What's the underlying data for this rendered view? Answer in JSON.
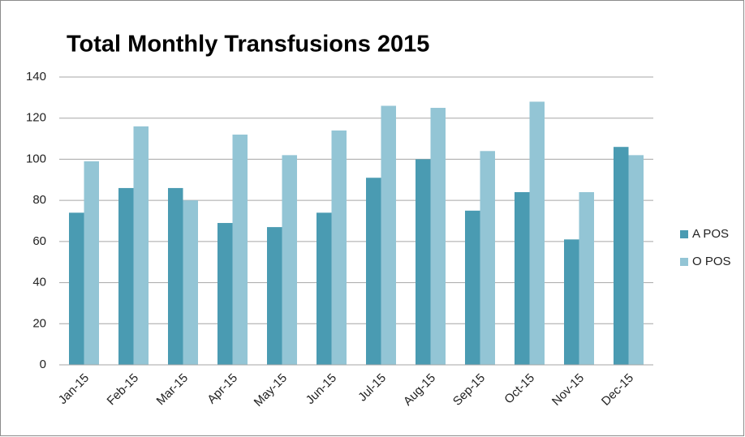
{
  "chart_data": {
    "type": "bar",
    "title": "Total Monthly Transfusions 2015",
    "categories": [
      "Jan-15",
      "Feb-15",
      "Mar-15",
      "Apr-15",
      "May-15",
      "Jun-15",
      "Jul-15",
      "Aug-15",
      "Sep-15",
      "Oct-15",
      "Nov-15",
      "Dec-15"
    ],
    "series": [
      {
        "name": "A POS",
        "color": "#4a9bb2",
        "values": [
          74,
          86,
          86,
          69,
          67,
          74,
          91,
          100,
          75,
          84,
          61,
          106
        ]
      },
      {
        "name": "O POS",
        "color": "#93c5d5",
        "values": [
          99,
          116,
          80,
          112,
          102,
          114,
          126,
          125,
          104,
          128,
          84,
          102
        ]
      }
    ],
    "ylim": [
      0,
      140
    ],
    "yticks": [
      0,
      20,
      40,
      60,
      80,
      100,
      120,
      140
    ],
    "grid": true,
    "legend": "right"
  }
}
